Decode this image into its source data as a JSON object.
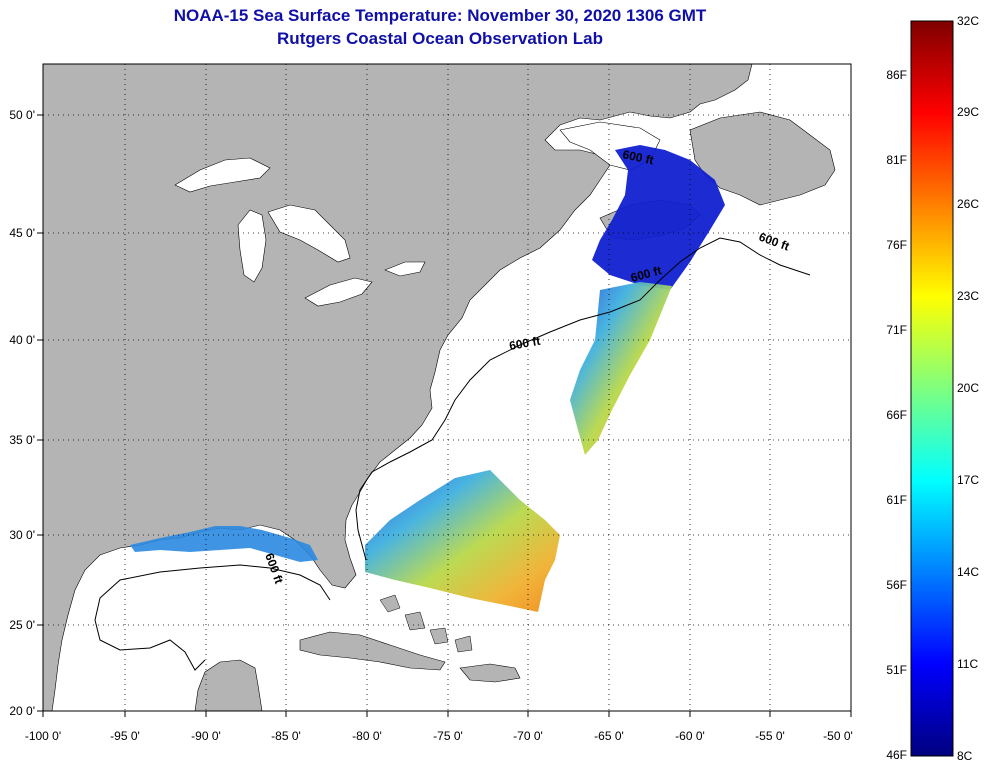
{
  "title": {
    "line1": "NOAA-15 Sea Surface Temperature:  November 30, 2020 1306 GMT",
    "line2": "Rutgers Coastal Ocean Observation Lab"
  },
  "map": {
    "lat_labels": [
      "50 0'",
      "45 0'",
      "40 0'",
      "35 0'",
      "30 0'",
      "25 0'",
      "20 0'"
    ],
    "lon_labels": [
      "-100 0'",
      "-95 0'",
      "-90 0'",
      "-85 0'",
      "-80 0'",
      "-75 0'",
      "-70 0'",
      "-65 0'",
      "-60 0'",
      "-55 0'",
      "-50 0'"
    ],
    "contour_labels": [
      "600 ft",
      "600 ft",
      "600 ft",
      "600 ft",
      "600 ft"
    ]
  },
  "colorbar": {
    "celsius": [
      "32C",
      "29C",
      "26C",
      "23C",
      "20C",
      "17C",
      "14C",
      "11C",
      "8C"
    ],
    "fahrenheit": [
      "86F",
      "81F",
      "76F",
      "71F",
      "66F",
      "61F",
      "56F",
      "51F",
      "46F"
    ]
  },
  "colors": {
    "land": "#b4b4b4",
    "ocean": "#ffffff",
    "title": "#1010a8"
  }
}
